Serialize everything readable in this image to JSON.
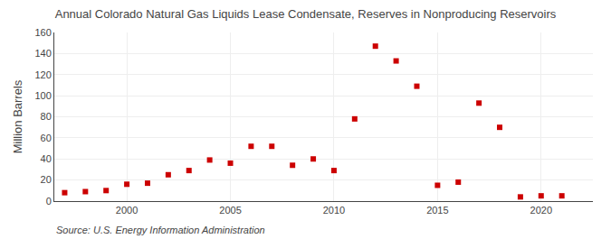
{
  "chart_data": {
    "type": "scatter",
    "title": "Annual Colorado Natural Gas Liquids Lease Condensate, Reserves in Nonproducing Reservoirs",
    "ylabel": "Million Barrels",
    "annotations": [
      "Source: U.S. Energy Information Administration"
    ],
    "x": [
      1997,
      1998,
      1999,
      2000,
      2001,
      2002,
      2003,
      2004,
      2005,
      2006,
      2007,
      2008,
      2009,
      2010,
      2011,
      2012,
      2013,
      2014,
      2015,
      2016,
      2017,
      2018,
      2019,
      2020,
      2021
    ],
    "values": [
      8,
      9,
      10,
      16,
      17,
      25,
      29,
      39,
      36,
      52,
      52,
      34,
      40,
      29,
      78,
      147,
      133,
      109,
      15,
      18,
      93,
      70,
      4,
      5,
      5
    ],
    "color": "#cc0000",
    "marker": "square",
    "xlim": [
      1996.5,
      2022.5
    ],
    "xticks": [
      2000,
      2005,
      2010,
      2015,
      2020
    ],
    "ylim": [
      0,
      160
    ],
    "yticks": [
      0,
      20,
      40,
      60,
      80,
      100,
      120,
      140,
      160
    ],
    "grid": true
  }
}
